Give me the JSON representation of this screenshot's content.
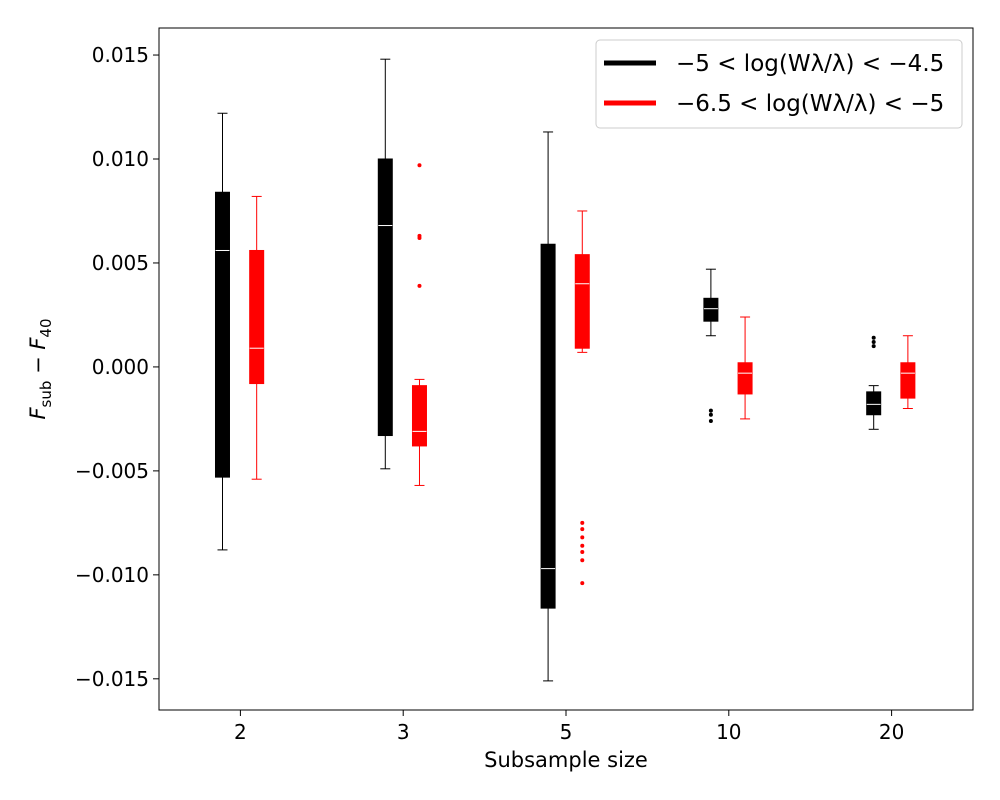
{
  "chart_data": {
    "type": "box",
    "xlabel": "Subsample size",
    "ylabel": "F_sub − F_40",
    "ylim": [
      -0.0165,
      0.0163
    ],
    "categories": [
      "2",
      "3",
      "5",
      "10",
      "20"
    ],
    "yticks": [
      0.015,
      0.01,
      0.005,
      0.0,
      -0.005,
      -0.01,
      -0.015
    ],
    "ytick_labels": [
      "0.015",
      "0.010",
      "0.005",
      "0.000",
      "−0.005",
      "−0.010",
      "−0.015"
    ],
    "legend_position": "top-right",
    "grid": false,
    "series": [
      {
        "name": "−5 < log(Wλ/λ) < −4.5",
        "color": "#000000",
        "boxes": [
          {
            "category": "2",
            "whisker_low": -0.0088,
            "q1": -0.0053,
            "median": 0.0056,
            "q3": 0.0084,
            "whisker_high": 0.0122,
            "outliers": []
          },
          {
            "category": "3",
            "whisker_low": -0.0049,
            "q1": -0.0033,
            "median": 0.0068,
            "q3": 0.01,
            "whisker_high": 0.0148,
            "outliers": []
          },
          {
            "category": "5",
            "whisker_low": -0.0151,
            "q1": -0.0116,
            "median": -0.0097,
            "q3": 0.0059,
            "whisker_high": 0.0113,
            "outliers": []
          },
          {
            "category": "10",
            "whisker_low": 0.0015,
            "q1": 0.0022,
            "median": 0.0028,
            "q3": 0.0033,
            "whisker_high": 0.0047,
            "outliers": [
              -0.0021,
              -0.0023,
              -0.0026
            ]
          },
          {
            "category": "20",
            "whisker_low": -0.003,
            "q1": -0.0023,
            "median": -0.0018,
            "q3": -0.0012,
            "whisker_high": -0.0009,
            "outliers": [
              0.001,
              0.0012,
              0.0014
            ]
          }
        ]
      },
      {
        "name": "−6.5 < log(Wλ/λ) < −5",
        "color": "#ff0000",
        "boxes": [
          {
            "category": "2",
            "whisker_low": -0.0054,
            "q1": -0.0008,
            "median": 0.0009,
            "q3": 0.0056,
            "whisker_high": 0.0082,
            "outliers": []
          },
          {
            "category": "3",
            "whisker_low": -0.0057,
            "q1": -0.0038,
            "median": -0.0031,
            "q3": -0.0009,
            "whisker_high": -0.0006,
            "outliers": [
              0.0039,
              0.0062,
              0.0063,
              0.0097
            ]
          },
          {
            "category": "5",
            "whisker_low": 0.0007,
            "q1": 0.0009,
            "median": 0.004,
            "q3": 0.0054,
            "whisker_high": 0.0075,
            "outliers": [
              -0.0075,
              -0.0078,
              -0.0082,
              -0.0086,
              -0.0089,
              -0.0093,
              -0.0104
            ]
          },
          {
            "category": "10",
            "whisker_low": -0.0025,
            "q1": -0.0013,
            "median": -0.0003,
            "q3": 0.0002,
            "whisker_high": 0.0024,
            "outliers": []
          },
          {
            "category": "20",
            "whisker_low": -0.002,
            "q1": -0.0015,
            "median": -0.0003,
            "q3": 0.0002,
            "whisker_high": 0.0015,
            "outliers": []
          }
        ]
      }
    ]
  }
}
